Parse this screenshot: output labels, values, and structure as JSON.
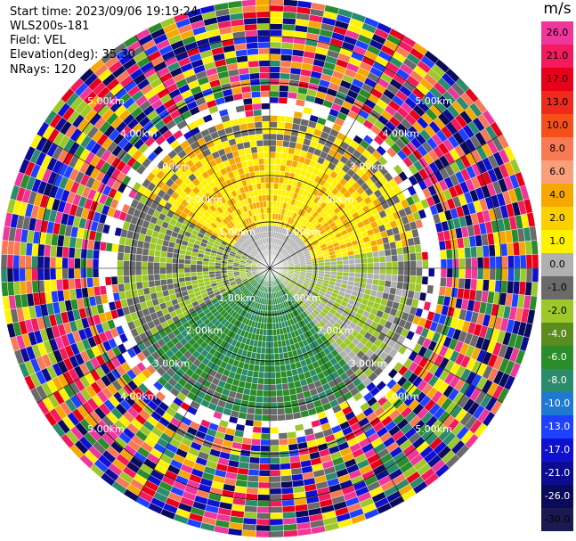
{
  "header": {
    "start_time": "Start time: 2023/09/06 19:19:24",
    "instrument": "WLS200s-181",
    "field": "Field: VEL",
    "elevation": "Elevation(deg): 35.30",
    "nrays": "NRays: 120"
  },
  "colorbar": {
    "unit": "m/s",
    "ticks": [
      "26.0",
      "21.0",
      "17.0",
      "13.0",
      "10.0",
      "8.0",
      "6.0",
      "4.0",
      "2.0",
      "1.0",
      "0.0",
      "-1.0",
      "-2.0",
      "-4.0",
      "-6.0",
      "-8.0",
      "-10.0",
      "-13.0",
      "-17.0",
      "-21.0",
      "-26.0",
      "-30.0"
    ],
    "colors": [
      "#f0369a",
      "#f31a5e",
      "#e8001a",
      "#f02a1a",
      "#f5501a",
      "#f87a55",
      "#f9a07a",
      "#f7a800",
      "#fcd000",
      "#fff200",
      "#b0b0b0",
      "#6a6a6a",
      "#9cc82a",
      "#5a8c1e",
      "#2a8c2a",
      "#2a8c6a",
      "#1e7ad0",
      "#1e40ff",
      "#1010d0",
      "#0c0c90",
      "#0a0a5a",
      "#1a1a4e"
    ]
  },
  "chart_data": {
    "type": "ppi",
    "rays": 120,
    "range_rings_km": [
      1.0,
      2.0,
      3.0,
      4.0,
      5.0
    ],
    "ring_labels": [
      "1.00km",
      "2.00km",
      "3.00km",
      "4.00km",
      "5.00km"
    ]
  }
}
